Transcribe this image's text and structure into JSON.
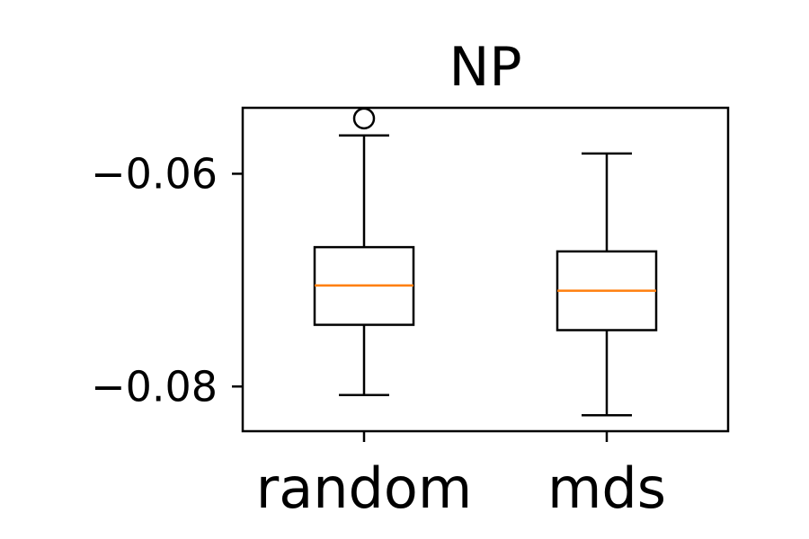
{
  "chart_data": {
    "type": "box",
    "title": "NP",
    "xlabel": "",
    "ylabel": "",
    "categories": [
      "random",
      "mds"
    ],
    "boxes": [
      {
        "category": "random",
        "whisker_low": -0.0808,
        "q1": -0.0742,
        "median": -0.0705,
        "q3": -0.0669,
        "whisker_high": -0.0564,
        "outliers": [
          -0.0548
        ]
      },
      {
        "category": "mds",
        "whisker_low": -0.0827,
        "q1": -0.0747,
        "median": -0.071,
        "q3": -0.0673,
        "whisker_high": -0.0581,
        "outliers": []
      }
    ],
    "ylim": [
      -0.0842,
      -0.0538
    ],
    "yticks": [
      -0.08,
      -0.06
    ],
    "ytick_labels": [
      "−0.08",
      "−0.06"
    ],
    "grid": false,
    "legend": "none",
    "colors": {
      "box": "#000000",
      "median": "#ff7f0e",
      "background": "#ffffff"
    }
  }
}
